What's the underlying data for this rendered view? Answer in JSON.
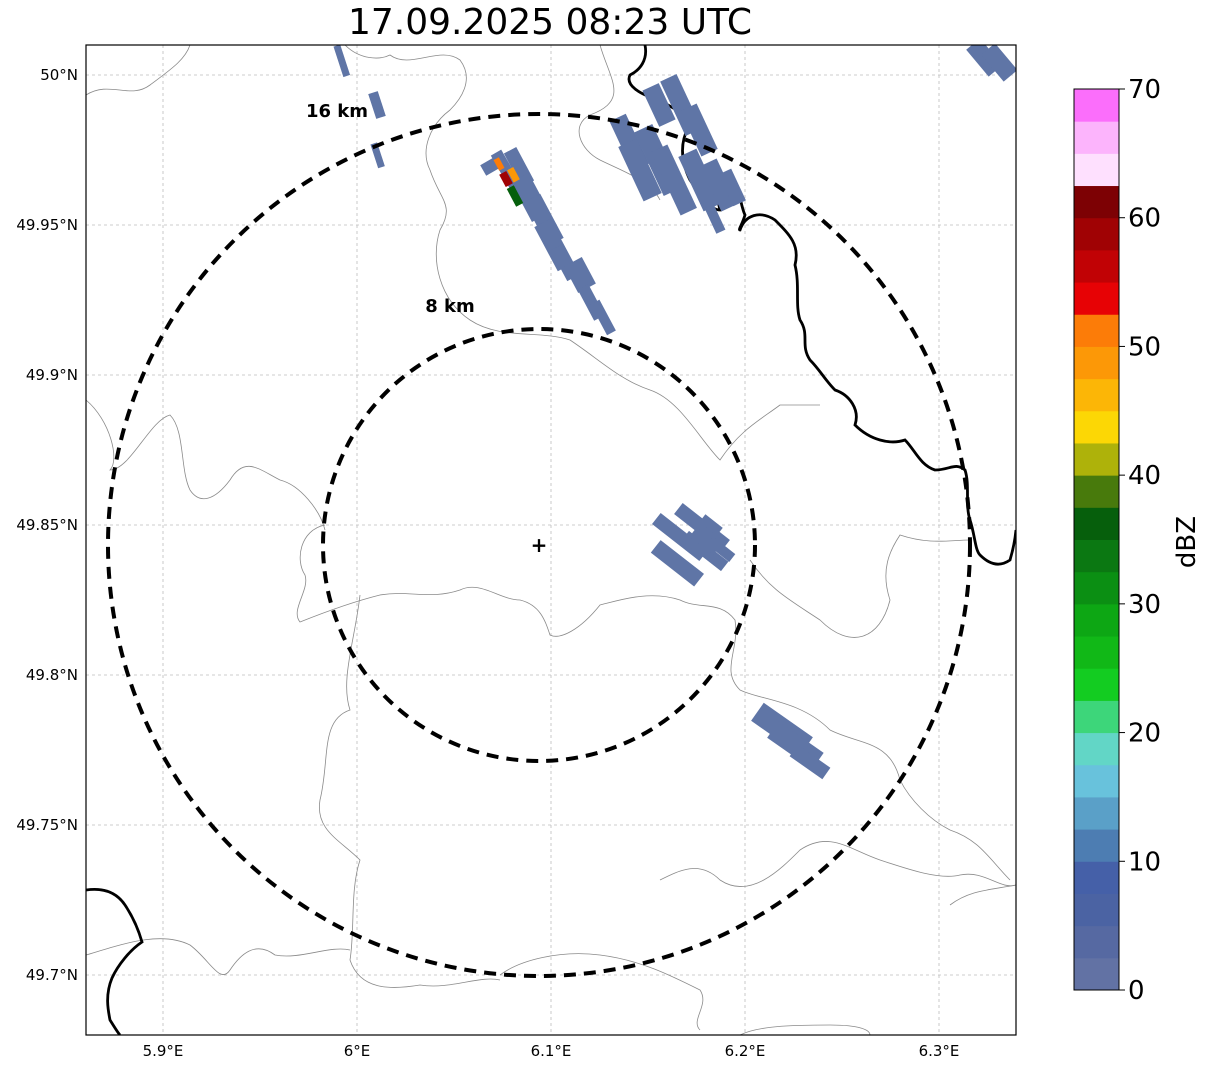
{
  "title": "17.09.2025 08:23 UTC",
  "map": {
    "lat_ticks": [
      "50°N",
      "49.95°N",
      "49.9°N",
      "49.85°N",
      "49.8°N",
      "49.75°N",
      "49.7°N"
    ],
    "lon_ticks": [
      "5.9°E",
      "6°E",
      "6.1°E",
      "6.2°E",
      "6.3°E"
    ],
    "rings": [
      {
        "label": "8 km",
        "radius_km": 8
      },
      {
        "label": "16 km",
        "radius_km": 16
      }
    ],
    "radar_site": "+",
    "grid": true
  },
  "colorbar": {
    "label": "dBZ",
    "ticks": [
      "0",
      "10",
      "20",
      "30",
      "40",
      "50",
      "60",
      "70"
    ],
    "min": 0,
    "max": 70,
    "step": 2.5,
    "colors": [
      "#6272a4",
      "#5669a2",
      "#4b63a3",
      "#4560a8",
      "#4d7db2",
      "#5aa0c8",
      "#68c2dc",
      "#62d6c6",
      "#3dd67a",
      "#13cc21",
      "#11b817",
      "#0da714",
      "#0b8f13",
      "#0b7812",
      "#065f0c",
      "#487a0c",
      "#aeb20a",
      "#fcd705",
      "#fcb606",
      "#fc9807",
      "#fc7c08",
      "#e70205",
      "#c10205",
      "#a00204",
      "#7d0104",
      "#fee0fe",
      "#fcb4fc",
      "#fb6efb",
      "#f034ee"
    ]
  }
}
